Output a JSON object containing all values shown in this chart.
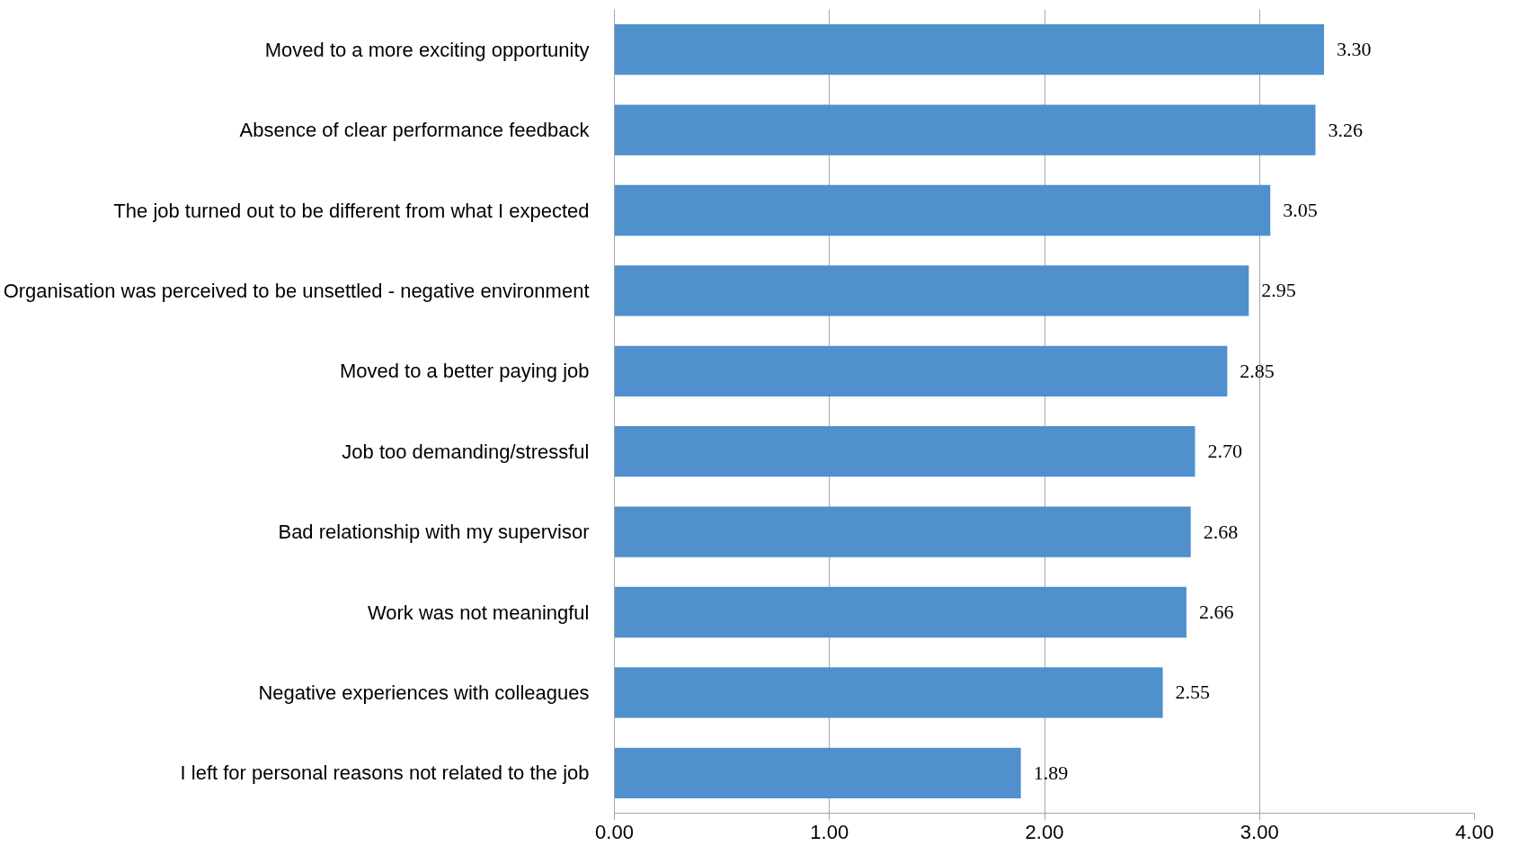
{
  "chart_data": {
    "type": "bar",
    "orientation": "horizontal",
    "categories": [
      "Moved to a more exciting opportunity",
      "Absence of clear performance feedback",
      "The job turned out to be different from what I expected",
      "Organisation was perceived to be unsettled - negative environment",
      "Moved to a better paying job",
      "Job too demanding/stressful",
      "Bad relationship with my supervisor",
      "Work was not meaningful",
      "Negative experiences with colleagues",
      "I left for personal reasons not related to the job"
    ],
    "values": [
      3.3,
      3.26,
      3.05,
      2.95,
      2.85,
      2.7,
      2.68,
      2.66,
      2.55,
      1.89
    ],
    "value_labels": [
      "3.30",
      "3.26",
      "3.05",
      "2.95",
      "2.85",
      "2.70",
      "2.68",
      "2.66",
      "2.55",
      "1.89"
    ],
    "color": "#4f90cd",
    "xlim": [
      0,
      4
    ],
    "xticks": [
      {
        "value": 0,
        "label": "0.00"
      },
      {
        "value": 1,
        "label": "1.00"
      },
      {
        "value": 2,
        "label": "2.00"
      },
      {
        "value": 3,
        "label": "3.00"
      },
      {
        "value": 4,
        "label": "4.00"
      }
    ],
    "grid": "x"
  }
}
